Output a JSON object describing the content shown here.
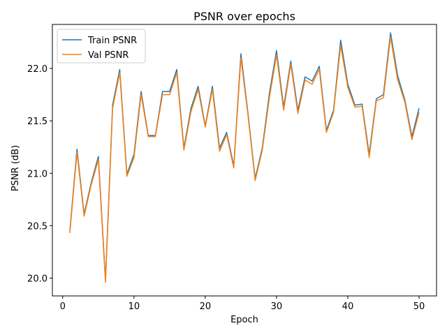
{
  "chart_data": {
    "type": "line",
    "title": "PSNR over epochs",
    "xlabel": "Epoch",
    "ylabel": "PSNR (dB)",
    "xlim": [
      -1.45,
      52.45
    ],
    "ylim": [
      19.83,
      22.42
    ],
    "xticks": [
      0,
      10,
      20,
      30,
      40,
      50
    ],
    "yticks": [
      20.0,
      20.5,
      21.0,
      21.5,
      22.0
    ],
    "ytick_labels": [
      "20.0",
      "20.5",
      "21.0",
      "21.5",
      "22.0"
    ],
    "grid": false,
    "legend_position": "upper-left",
    "x": [
      1,
      2,
      3,
      4,
      5,
      6,
      7,
      8,
      9,
      10,
      11,
      12,
      13,
      14,
      15,
      16,
      17,
      18,
      19,
      20,
      21,
      22,
      23,
      24,
      25,
      26,
      27,
      28,
      29,
      30,
      31,
      32,
      33,
      34,
      35,
      36,
      37,
      38,
      39,
      40,
      41,
      42,
      43,
      44,
      45,
      46,
      47,
      48,
      49,
      50
    ],
    "series": [
      {
        "name": "Train PSNR",
        "color": "#1f77b4",
        "values": [
          20.45,
          21.23,
          20.61,
          20.91,
          21.16,
          19.98,
          21.65,
          21.99,
          20.99,
          21.18,
          21.78,
          21.36,
          21.36,
          21.78,
          21.78,
          21.99,
          21.24,
          21.62,
          21.83,
          21.45,
          21.83,
          21.24,
          21.39,
          21.07,
          22.14,
          21.57,
          20.95,
          21.24,
          21.76,
          22.17,
          21.63,
          22.07,
          21.6,
          21.92,
          21.88,
          22.02,
          21.41,
          21.6,
          22.27,
          21.85,
          21.65,
          21.66,
          21.18,
          21.71,
          21.75,
          22.34,
          21.93,
          21.7,
          21.35,
          21.62
        ]
      },
      {
        "name": "Val PSNR",
        "color": "#ff7f0e",
        "values": [
          20.43,
          21.2,
          20.59,
          20.89,
          21.13,
          19.96,
          21.62,
          21.96,
          20.97,
          21.15,
          21.75,
          21.35,
          21.35,
          21.75,
          21.75,
          21.96,
          21.22,
          21.59,
          21.8,
          21.44,
          21.8,
          21.21,
          21.37,
          21.05,
          22.1,
          21.55,
          20.93,
          21.22,
          21.72,
          22.13,
          21.6,
          22.04,
          21.57,
          21.89,
          21.85,
          21.99,
          21.39,
          21.58,
          22.22,
          21.82,
          21.63,
          21.64,
          21.15,
          21.69,
          21.72,
          22.3,
          21.89,
          21.68,
          21.32,
          21.58
        ]
      }
    ]
  }
}
